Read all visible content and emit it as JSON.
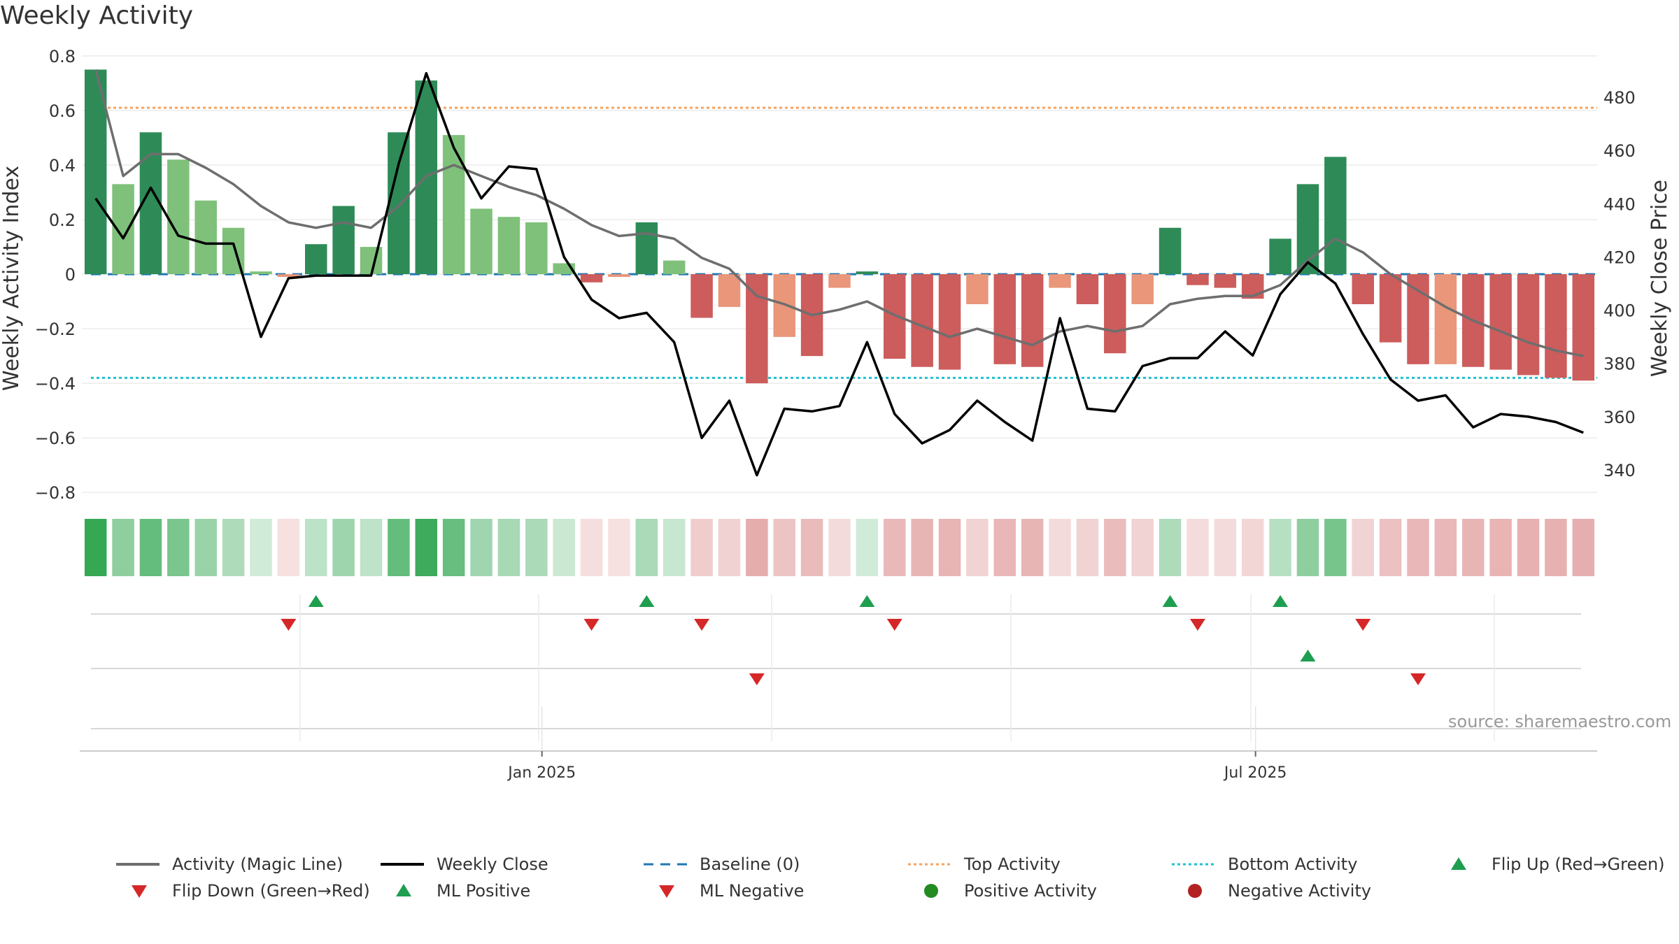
{
  "chart_data": {
    "type": "bar",
    "title": "Weekly Activity",
    "ylabel": "Weekly Activity Index",
    "y2label": "Weekly Close Price",
    "ylim": [
      -0.82,
      0.8
    ],
    "y2lim": [
      329.5,
      495.5
    ],
    "yticks": [
      0.8,
      0.6,
      0.4,
      0.2,
      0,
      -0.2,
      -0.4,
      -0.6,
      -0.8
    ],
    "ytick_labels": [
      "0.8",
      "0.6",
      "0.4",
      "0.2",
      "0",
      "−0.2",
      "−0.4",
      "−0.6",
      "−0.8"
    ],
    "y2ticks": [
      480,
      460,
      440,
      420,
      400,
      380,
      360,
      340
    ],
    "y2tick_labels": [
      "480",
      "460",
      "440",
      "420",
      "400",
      "380",
      "360",
      "340"
    ],
    "x_tick_labels": [
      {
        "label": "Jan 2025",
        "week": 16.7
      },
      {
        "label": "Jul 2025",
        "week": 42.6
      }
    ],
    "top_activity": 0.61,
    "bottom_activity": -0.38,
    "activity": [
      0.75,
      0.33,
      0.52,
      0.42,
      0.27,
      0.17,
      0.01,
      -0.01,
      0.11,
      0.25,
      0.1,
      0.52,
      0.71,
      0.51,
      0.24,
      0.21,
      0.19,
      0.04,
      -0.03,
      -0.01,
      0.19,
      0.05,
      -0.16,
      -0.12,
      -0.4,
      -0.23,
      -0.3,
      -0.05,
      0.01,
      -0.31,
      -0.34,
      -0.35,
      -0.11,
      -0.33,
      -0.34,
      -0.05,
      -0.11,
      -0.29,
      -0.11,
      0.17,
      -0.04,
      -0.05,
      -0.09,
      0.13,
      0.33,
      0.43,
      -0.11,
      -0.25,
      -0.33,
      -0.33,
      -0.34,
      -0.35,
      -0.37,
      -0.38,
      -0.39
    ],
    "intensity": [
      "strong",
      "light",
      "strong",
      "light",
      "light",
      "light",
      "light",
      "light",
      "strong",
      "strong",
      "light",
      "strong",
      "strong",
      "light",
      "light",
      "light",
      "light",
      "light",
      "strong",
      "light",
      "strong",
      "light",
      "strong",
      "light",
      "strong",
      "light",
      "strong",
      "light",
      "strong",
      "strong",
      "strong",
      "strong",
      "light",
      "strong",
      "strong",
      "light",
      "strong",
      "strong",
      "light",
      "strong",
      "strong",
      "strong",
      "strong",
      "strong",
      "strong",
      "strong",
      "strong",
      "strong",
      "strong",
      "light",
      "strong",
      "strong",
      "strong",
      "strong",
      "strong"
    ],
    "magic_line": [
      0.75,
      0.36,
      0.44,
      0.44,
      0.39,
      0.33,
      0.25,
      0.19,
      0.17,
      0.19,
      0.17,
      0.25,
      0.36,
      0.4,
      0.36,
      0.32,
      0.29,
      0.24,
      0.18,
      0.14,
      0.15,
      0.13,
      0.06,
      0.02,
      -0.08,
      -0.11,
      -0.15,
      -0.13,
      -0.1,
      -0.15,
      -0.19,
      -0.23,
      -0.2,
      -0.23,
      -0.26,
      -0.21,
      -0.19,
      -0.21,
      -0.19,
      -0.11,
      -0.09,
      -0.08,
      -0.08,
      -0.04,
      0.05,
      0.13,
      0.08,
      0.0,
      -0.06,
      -0.12,
      -0.17,
      -0.21,
      -0.25,
      -0.28,
      -0.3
    ],
    "weekly_close": [
      442,
      427,
      446,
      428,
      425,
      425,
      390,
      412,
      413,
      413,
      413,
      455,
      489,
      461,
      442,
      454,
      453,
      420,
      404,
      397,
      399,
      388,
      352,
      366,
      338,
      363,
      362,
      364,
      388,
      361,
      350,
      355,
      366,
      358,
      351,
      397,
      363,
      362,
      379,
      382,
      382,
      392,
      383,
      406,
      418,
      410,
      391,
      374,
      366,
      368,
      356,
      361,
      360,
      358,
      354
    ],
    "flip_up": [
      8,
      20,
      28,
      39,
      43
    ],
    "flip_down": [
      7,
      18,
      22,
      29,
      40,
      46
    ],
    "ml_positive": [
      44
    ],
    "ml_negative": [
      24,
      48
    ],
    "series": [
      {
        "name": "Activity (Magic Line)"
      },
      {
        "name": "Weekly Close"
      },
      {
        "name": "Baseline (0)"
      },
      {
        "name": "Top Activity"
      },
      {
        "name": "Bottom Activity"
      },
      {
        "name": "Flip Up (Red→Green)"
      },
      {
        "name": "Flip Down (Green→Red)"
      },
      {
        "name": "ML Positive"
      },
      {
        "name": "ML Negative"
      },
      {
        "name": "Positive Activity"
      },
      {
        "name": "Negative Activity"
      }
    ],
    "legend_placement": "bottom",
    "grid": true
  },
  "source_text": "source: sharemaestro.com",
  "colors": {
    "pos_strong": "#2e8b57",
    "pos_light": "#7fc17b",
    "neg_strong": "#cd5c5c",
    "neg_light": "#e9967a",
    "magic_line": "#6e6e6e",
    "close": "#000000",
    "baseline": "#1f77b4",
    "top": "#f4a460",
    "bottom": "#20c0d0",
    "flip_up": "#1e9e4f",
    "flip_down": "#d62728",
    "pos_dot": "#228b22",
    "neg_dot": "#b22222"
  }
}
